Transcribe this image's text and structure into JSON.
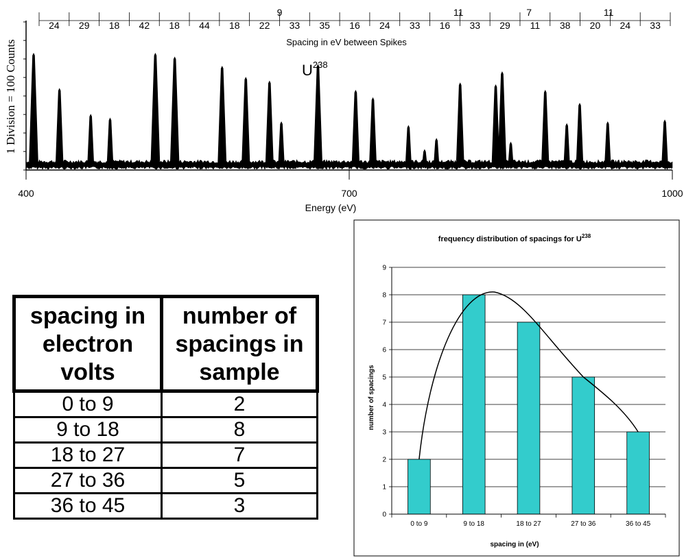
{
  "chart_data": [
    {
      "type": "line",
      "title": "",
      "ylabel": "1 Division = 100 Counts",
      "xlabel": "Energy (eV)",
      "xlim": [
        400,
        1000
      ],
      "x_ticks": [
        "400",
        "700",
        "1000"
      ],
      "annotation": {
        "text": "U",
        "superscript": "238"
      },
      "spacing_caption": "Spacing in eV between Spikes",
      "spacing_values": [
        "24",
        "29",
        "18",
        "42",
        "18",
        "44",
        "18",
        "22",
        "33",
        "35",
        "16",
        "24",
        "33",
        "16",
        "33",
        "29",
        "11",
        "38",
        "20",
        "24",
        "33"
      ],
      "spacing_upper_values": [
        "9",
        "11",
        "7",
        "11"
      ],
      "y_divisions": 8,
      "peaks": [
        {
          "energy": 407,
          "height": 6.0
        },
        {
          "energy": 431,
          "height": 4.1
        },
        {
          "energy": 460,
          "height": 2.7
        },
        {
          "energy": 478,
          "height": 2.5
        },
        {
          "energy": 520,
          "height": 6.0
        },
        {
          "energy": 538,
          "height": 5.8
        },
        {
          "energy": 582,
          "height": 5.3
        },
        {
          "energy": 604,
          "height": 4.7
        },
        {
          "energy": 626,
          "height": 4.5
        },
        {
          "energy": 637,
          "height": 2.3
        },
        {
          "energy": 671,
          "height": 5.4
        },
        {
          "energy": 706,
          "height": 4.0
        },
        {
          "energy": 722,
          "height": 3.6
        },
        {
          "energy": 755,
          "height": 2.1
        },
        {
          "energy": 770,
          "height": 0.8
        },
        {
          "energy": 781,
          "height": 1.4
        },
        {
          "energy": 803,
          "height": 4.4
        },
        {
          "energy": 836,
          "height": 4.3
        },
        {
          "energy": 842,
          "height": 5.0
        },
        {
          "energy": 850,
          "height": 1.2
        },
        {
          "energy": 882,
          "height": 4.0
        },
        {
          "energy": 902,
          "height": 2.2
        },
        {
          "energy": 914,
          "height": 3.3
        },
        {
          "energy": 940,
          "height": 2.3
        },
        {
          "energy": 993,
          "height": 2.4
        }
      ]
    },
    {
      "type": "bar",
      "title": "frequency distribution of spacings for U",
      "title_superscript": "238",
      "xlabel": "spacing in (eV)",
      "ylabel": "number of spacings",
      "ylim": [
        0,
        9
      ],
      "yticks": [
        "0",
        "1",
        "2",
        "3",
        "4",
        "5",
        "6",
        "7",
        "8",
        "9"
      ],
      "categories": [
        "0 to 9",
        "9 to 18",
        "18 to 27",
        "27 to 36",
        "36 to 45"
      ],
      "values": [
        2,
        8,
        7,
        5,
        3
      ],
      "grid": true,
      "bar_color": "#33CCCC",
      "has_fit_curve": true
    }
  ],
  "table": {
    "headers": [
      "spacing in electron volts",
      "number of spacings in sample"
    ],
    "rows": [
      [
        "0 to 9",
        "2"
      ],
      [
        "9 to 18",
        "8"
      ],
      [
        "18 to 27",
        "7"
      ],
      [
        "27 to 36",
        "5"
      ],
      [
        "36 to 45",
        "3"
      ]
    ]
  }
}
